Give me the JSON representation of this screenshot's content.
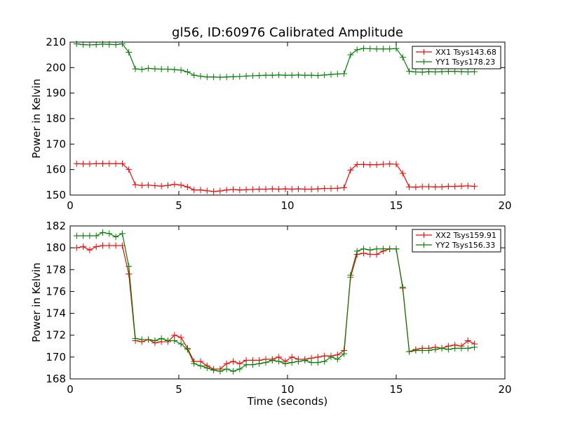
{
  "chart_data": [
    {
      "type": "line",
      "title": "gl56, ID:60976 Calibrated Amplitude",
      "xlabel": "",
      "ylabel": "Power in Kelvin",
      "xlim": [
        0,
        20
      ],
      "ylim": [
        150,
        210
      ],
      "x_ticks": [
        "0",
        "5",
        "10",
        "15",
        "20"
      ],
      "y_ticks": [
        "150",
        "160",
        "170",
        "180",
        "190",
        "200",
        "210"
      ],
      "legend_position": "top-right",
      "grid": false,
      "x": [
        0.3,
        0.6,
        0.9,
        1.2,
        1.5,
        1.8,
        2.1,
        2.4,
        2.7,
        3.0,
        3.3,
        3.6,
        3.9,
        4.2,
        4.5,
        4.8,
        5.1,
        5.4,
        5.7,
        6.0,
        6.3,
        6.6,
        6.9,
        7.2,
        7.5,
        7.8,
        8.1,
        8.4,
        8.7,
        9.0,
        9.3,
        9.6,
        9.9,
        10.2,
        10.5,
        10.8,
        11.1,
        11.4,
        11.7,
        12.0,
        12.3,
        12.6,
        12.9,
        13.2,
        13.5,
        13.8,
        14.1,
        14.4,
        14.7,
        15.0,
        15.3,
        15.6,
        15.9,
        16.2,
        16.5,
        16.8,
        17.1,
        17.4,
        17.7,
        18.0,
        18.3,
        18.6
      ],
      "series": [
        {
          "name": "XX1 Tsys143.68",
          "color": "#ff0000",
          "values": [
            162.3,
            162.2,
            162.2,
            162.3,
            162.3,
            162.3,
            162.3,
            162.3,
            160.0,
            154.0,
            153.8,
            153.9,
            153.7,
            153.5,
            153.8,
            154.2,
            153.9,
            153.2,
            152.0,
            152.0,
            151.7,
            151.4,
            151.6,
            152.0,
            152.2,
            152.0,
            152.1,
            152.2,
            152.3,
            152.3,
            152.4,
            152.3,
            152.4,
            152.3,
            152.4,
            152.3,
            152.3,
            152.4,
            152.6,
            152.6,
            152.7,
            152.9,
            159.8,
            162.0,
            162.0,
            161.9,
            161.9,
            162.1,
            162.2,
            162.1,
            158.5,
            153.2,
            153.1,
            153.3,
            153.3,
            153.2,
            153.2,
            153.4,
            153.4,
            153.5,
            153.6,
            153.4
          ]
        },
        {
          "name": "YY1 Tsys178.23",
          "color": "#008000",
          "values": [
            209.3,
            209.0,
            208.9,
            209.0,
            209.2,
            209.1,
            209.0,
            209.3,
            206.0,
            199.5,
            199.3,
            199.7,
            199.5,
            199.4,
            199.4,
            199.2,
            199.0,
            198.3,
            197.0,
            196.6,
            196.3,
            196.3,
            196.2,
            196.3,
            196.4,
            196.5,
            196.7,
            196.8,
            196.9,
            197.0,
            197.0,
            197.1,
            197.0,
            197.0,
            197.1,
            197.0,
            197.0,
            196.9,
            197.1,
            197.3,
            197.5,
            197.6,
            205.0,
            207.0,
            207.5,
            207.4,
            207.3,
            207.3,
            207.3,
            207.5,
            204.0,
            198.5,
            198.3,
            198.2,
            198.4,
            198.3,
            198.4,
            198.5,
            198.5,
            198.4,
            198.3,
            198.4
          ]
        }
      ]
    },
    {
      "type": "line",
      "title": "",
      "xlabel": "Time (seconds)",
      "ylabel": "Power in Kelvin",
      "xlim": [
        0,
        20
      ],
      "ylim": [
        168,
        182
      ],
      "x_ticks": [
        "0",
        "5",
        "10",
        "15",
        "20"
      ],
      "y_ticks": [
        "168",
        "170",
        "172",
        "174",
        "176",
        "178",
        "180",
        "182"
      ],
      "legend_position": "top-right",
      "grid": false,
      "x": [
        0.3,
        0.6,
        0.9,
        1.2,
        1.5,
        1.8,
        2.1,
        2.4,
        2.7,
        3.0,
        3.3,
        3.6,
        3.9,
        4.2,
        4.5,
        4.8,
        5.1,
        5.4,
        5.7,
        6.0,
        6.3,
        6.6,
        6.9,
        7.2,
        7.5,
        7.8,
        8.1,
        8.4,
        8.7,
        9.0,
        9.3,
        9.6,
        9.9,
        10.2,
        10.5,
        10.8,
        11.1,
        11.4,
        11.7,
        12.0,
        12.3,
        12.6,
        12.9,
        13.2,
        13.5,
        13.8,
        14.1,
        14.4,
        14.7,
        15.0,
        15.3,
        15.6,
        15.9,
        16.2,
        16.5,
        16.8,
        17.1,
        17.4,
        17.7,
        18.0,
        18.3,
        18.6
      ],
      "series": [
        {
          "name": "XX2 Tsys159.91",
          "color": "#ff0000",
          "values": [
            180.0,
            180.1,
            179.8,
            180.1,
            180.2,
            180.2,
            180.2,
            180.2,
            177.6,
            171.5,
            171.4,
            171.6,
            171.3,
            171.4,
            171.4,
            172.0,
            171.8,
            170.8,
            169.6,
            169.6,
            169.2,
            168.9,
            168.9,
            169.4,
            169.6,
            169.4,
            169.7,
            169.7,
            169.7,
            169.8,
            169.8,
            170.0,
            169.6,
            170.0,
            169.8,
            169.8,
            169.9,
            170.0,
            170.1,
            170.1,
            170.2,
            170.6,
            177.3,
            179.4,
            179.5,
            179.4,
            179.4,
            179.7,
            179.9,
            179.9,
            176.3,
            170.5,
            170.7,
            170.8,
            170.8,
            170.9,
            170.8,
            171.0,
            171.1,
            171.0,
            171.5,
            171.2
          ]
        },
        {
          "name": "YY2 Tsys156.33",
          "color": "#008000",
          "values": [
            181.1,
            181.1,
            181.1,
            181.1,
            181.4,
            181.3,
            181.0,
            181.3,
            178.3,
            171.7,
            171.6,
            171.6,
            171.5,
            171.7,
            171.5,
            171.5,
            171.2,
            170.7,
            169.4,
            169.2,
            169.0,
            168.8,
            168.7,
            168.9,
            168.7,
            168.9,
            169.3,
            169.3,
            169.4,
            169.5,
            169.7,
            169.6,
            169.4,
            169.5,
            169.6,
            169.7,
            169.5,
            169.5,
            169.6,
            170.0,
            169.8,
            170.3,
            177.5,
            179.7,
            179.9,
            179.8,
            179.9,
            179.9,
            179.9,
            179.9,
            176.4,
            170.5,
            170.6,
            170.6,
            170.6,
            170.7,
            170.8,
            170.7,
            170.8,
            170.8,
            170.8,
            170.9
          ]
        }
      ]
    }
  ]
}
